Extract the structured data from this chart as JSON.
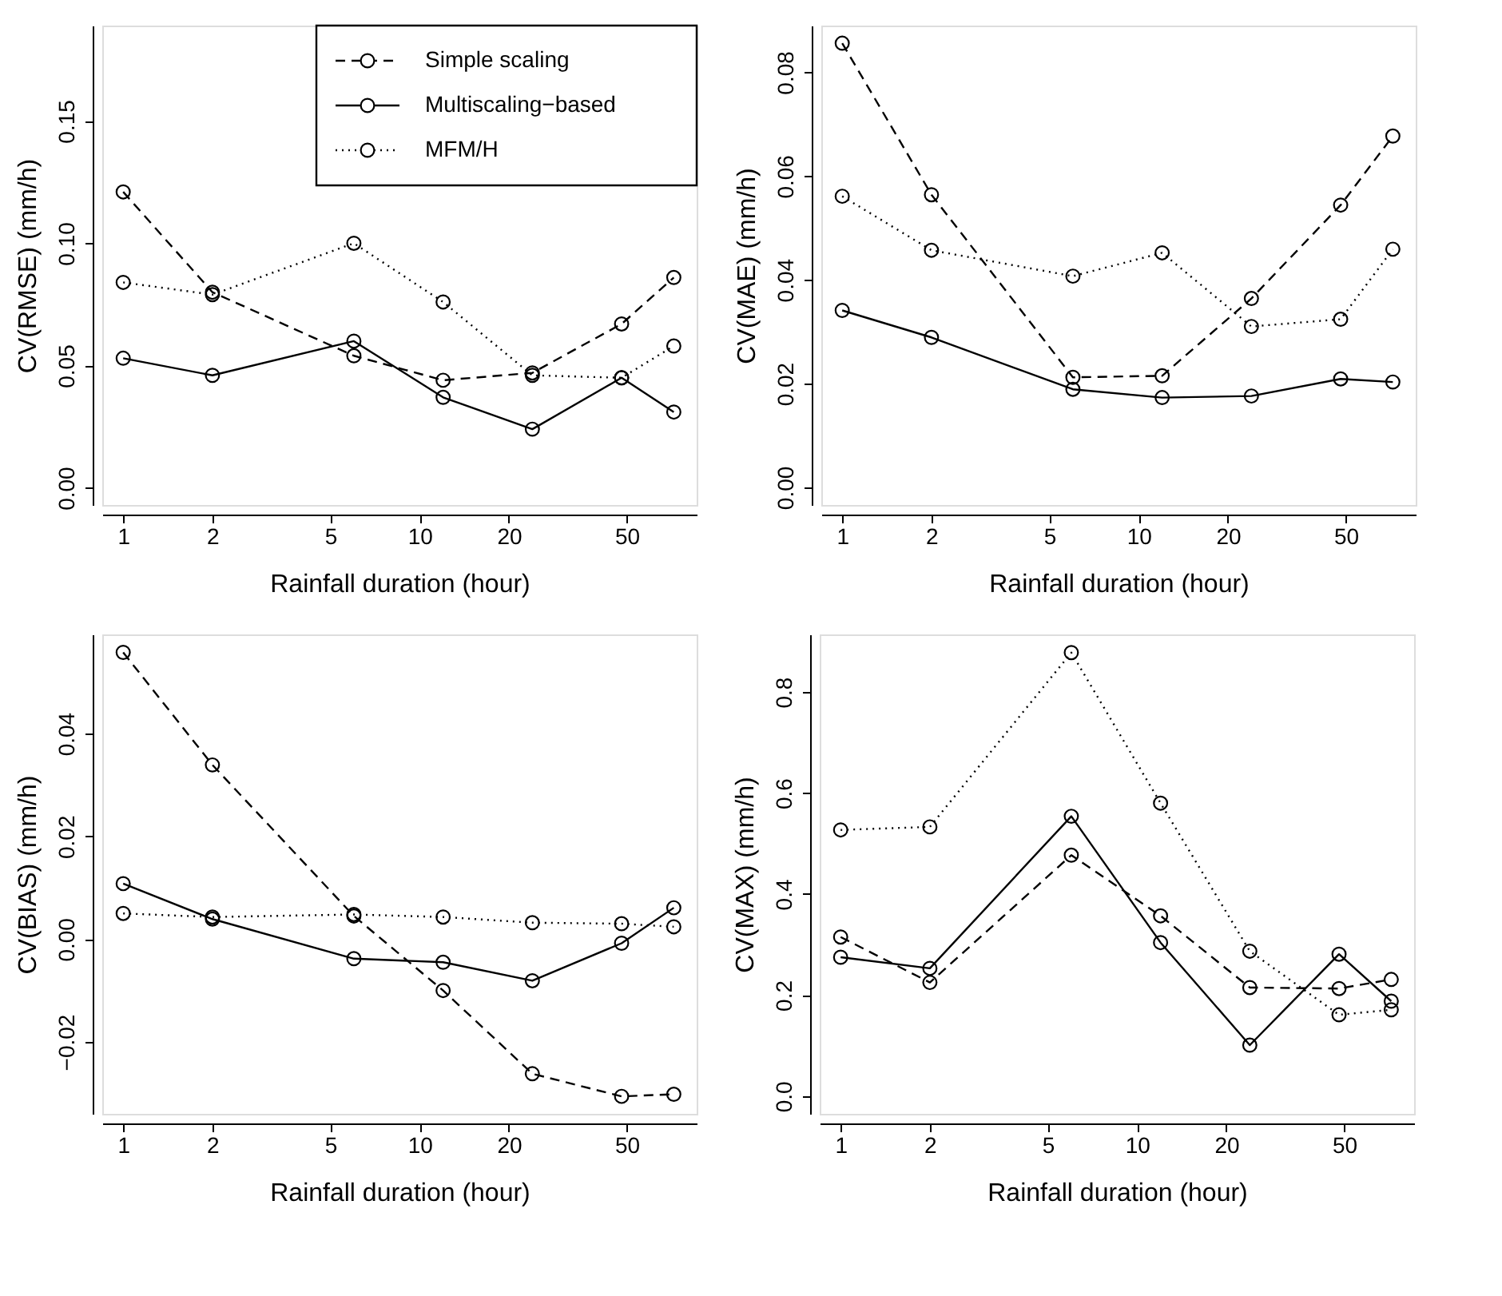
{
  "chart_data": [
    {
      "type": "line",
      "xlabel": "Rainfall duration (hour)",
      "ylabel": "CV(RMSE) (mm/h)",
      "log": "x",
      "grid": false,
      "legend": "top right",
      "marker": "circle",
      "x": [
        1,
        2,
        6,
        12,
        24,
        48,
        72
      ],
      "xlim": [
        0.85,
        86
      ],
      "xticks": [
        1,
        2,
        5,
        10,
        20,
        50
      ],
      "ylim": [
        -0.007,
        0.189
      ],
      "yticks": [
        {
          "value": 0,
          "label": "0.00"
        },
        {
          "value": 0.05,
          "label": "0.05"
        },
        {
          "value": 0.1,
          "label": "0.10"
        },
        {
          "value": 0.15,
          "label": "0.15"
        }
      ],
      "series": [
        {
          "name": "Simple scaling",
          "color": "#000000",
          "line_style": "dashed",
          "values": [
            0.121,
            0.08,
            0.054,
            0.044,
            0.047,
            0.067,
            0.086
          ]
        },
        {
          "name": "Multiscaling−based",
          "color": "#000000",
          "line_style": "solid",
          "values": [
            0.053,
            0.046,
            0.06,
            0.037,
            0.024,
            0.045,
            0.031
          ]
        },
        {
          "name": "MFM/H",
          "color": "#000000",
          "line_style": "dotted",
          "values": [
            0.084,
            0.079,
            0.1,
            0.076,
            0.046,
            0.045,
            0.058
          ]
        }
      ]
    },
    {
      "type": "line",
      "xlabel": "Rainfall duration (hour)",
      "ylabel": "CV(MAE) (mm/h)",
      "log": "x",
      "grid": false,
      "legend": false,
      "marker": "circle",
      "x": [
        1,
        2,
        6,
        12,
        24,
        48,
        72
      ],
      "xlim": [
        0.85,
        86
      ],
      "xticks": [
        1,
        2,
        5,
        10,
        20,
        50
      ],
      "ylim": [
        -0.0034,
        0.089
      ],
      "yticks": [
        {
          "value": 0,
          "label": "0.00"
        },
        {
          "value": 0.02,
          "label": "0.02"
        },
        {
          "value": 0.04,
          "label": "0.04"
        },
        {
          "value": 0.06,
          "label": "0.06"
        },
        {
          "value": 0.08,
          "label": "0.08"
        }
      ],
      "series": [
        {
          "color": "#000000",
          "line_style": "dashed",
          "values": [
            0.0856,
            0.0564,
            0.0212,
            0.0215,
            0.0364,
            0.0544,
            0.0677
          ]
        },
        {
          "color": "#000000",
          "line_style": "solid",
          "values": [
            0.0341,
            0.0289,
            0.0189,
            0.0173,
            0.0176,
            0.0209,
            0.0203
          ]
        },
        {
          "color": "#000000",
          "line_style": "dotted",
          "values": [
            0.0561,
            0.0457,
            0.0407,
            0.0452,
            0.031,
            0.0324,
            0.0459
          ]
        }
      ]
    },
    {
      "type": "line",
      "xlabel": "Rainfall duration (hour)",
      "ylabel": "CV(BIAS) (mm/h)",
      "log": "x",
      "grid": false,
      "legend": false,
      "marker": "circle",
      "x": [
        1,
        2,
        6,
        12,
        24,
        48,
        72
      ],
      "xlim": [
        0.85,
        86
      ],
      "xticks": [
        1,
        2,
        5,
        10,
        20,
        50
      ],
      "ylim": [
        -0.034,
        0.0593
      ],
      "yticks": [
        {
          "value": -0.02,
          "label": "−0.02"
        },
        {
          "value": 0,
          "label": "0.00"
        },
        {
          "value": 0.02,
          "label": "0.02"
        },
        {
          "value": 0.04,
          "label": "0.04"
        }
      ],
      "series": [
        {
          "color": "#000000",
          "line_style": "dashed",
          "values": [
            0.0558,
            0.0339,
            0.0045,
            -0.01,
            -0.0262,
            -0.0306,
            -0.0302
          ]
        },
        {
          "color": "#000000",
          "line_style": "solid",
          "values": [
            0.0108,
            0.0039,
            -0.0038,
            -0.0045,
            -0.0081,
            -0.0008,
            0.0061
          ]
        },
        {
          "color": "#000000",
          "line_style": "dotted",
          "values": [
            0.005,
            0.0043,
            0.0048,
            0.0043,
            0.0032,
            0.003,
            0.0024
          ]
        }
      ]
    },
    {
      "type": "line",
      "xlabel": "Rainfall duration (hour)",
      "ylabel": "CV(MAX) (mm/h)",
      "log": "x",
      "grid": false,
      "legend": false,
      "marker": "circle",
      "x": [
        1,
        2,
        6,
        12,
        24,
        48,
        72
      ],
      "xlim": [
        0.85,
        86
      ],
      "xticks": [
        1,
        2,
        5,
        10,
        20,
        50
      ],
      "ylim": [
        -0.035,
        0.914
      ],
      "yticks": [
        {
          "value": 0,
          "label": "0.0"
        },
        {
          "value": 0.2,
          "label": "0.2"
        },
        {
          "value": 0.4,
          "label": "0.4"
        },
        {
          "value": 0.6,
          "label": "0.6"
        },
        {
          "value": 0.8,
          "label": "0.8"
        }
      ],
      "series": [
        {
          "color": "#000000",
          "line_style": "dashed",
          "values": [
            0.315,
            0.225,
            0.477,
            0.357,
            0.215,
            0.213,
            0.231
          ]
        },
        {
          "color": "#000000",
          "line_style": "solid",
          "values": [
            0.275,
            0.253,
            0.554,
            0.304,
            0.101,
            0.281,
            0.188
          ]
        },
        {
          "color": "#000000",
          "line_style": "dotted",
          "values": [
            0.527,
            0.533,
            0.878,
            0.58,
            0.287,
            0.161,
            0.171
          ]
        }
      ]
    }
  ]
}
